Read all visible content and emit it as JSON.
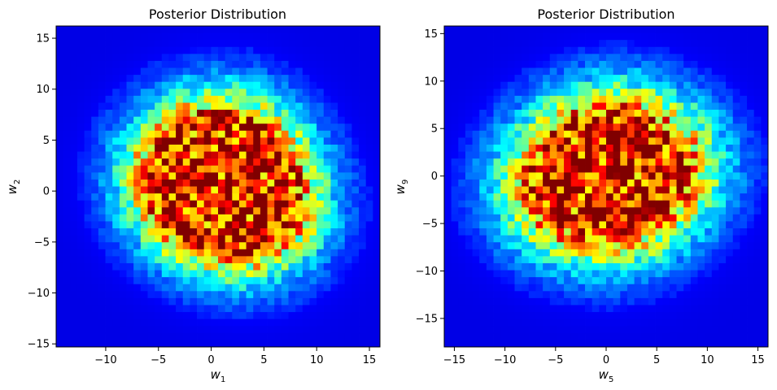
{
  "chart_data": [
    {
      "type": "heatmap",
      "title": "Posterior Distribution",
      "xlabel": "w",
      "xlabel_sub": "1",
      "ylabel": "w",
      "ylabel_sub": "2",
      "xlim": [
        -14.7,
        16.0
      ],
      "ylim": [
        -15.3,
        16.2
      ],
      "xticks": [
        -10,
        -5,
        0,
        5,
        10,
        15
      ],
      "yticks": [
        -15,
        -10,
        -5,
        0,
        5,
        10,
        15
      ],
      "xtick_labels": [
        "−10",
        "−5",
        "0",
        "5",
        "10",
        "15"
      ],
      "ytick_labels": [
        "−15",
        "−10",
        "−5",
        "0",
        "5",
        "10",
        "15"
      ],
      "colormap": "jet",
      "grid": false,
      "bins": 46,
      "density": {
        "spread": 4.6,
        "peaks": [
          {
            "x": -1.5,
            "y": 1.5,
            "weight": 1.0
          },
          {
            "x": 1.0,
            "y": -0.2,
            "weight": 1.0
          },
          {
            "x": 4.5,
            "y": -1.8,
            "weight": 0.8
          },
          {
            "x": 2.0,
            "y": 4.0,
            "weight": 0.5
          }
        ]
      }
    },
    {
      "type": "heatmap",
      "title": "Posterior Distribution",
      "xlabel": "w",
      "xlabel_sub": "5",
      "ylabel": "w",
      "ylabel_sub": "9",
      "xlim": [
        -16.0,
        16.0
      ],
      "ylim": [
        -18.0,
        15.8
      ],
      "xticks": [
        -15,
        -10,
        -5,
        0,
        5,
        10,
        15
      ],
      "yticks": [
        -15,
        -10,
        -5,
        0,
        5,
        10,
        15
      ],
      "xtick_labels": [
        "−15",
        "−10",
        "−5",
        "0",
        "5",
        "10",
        "15"
      ],
      "ytick_labels": [
        "−15",
        "−10",
        "−5",
        "0",
        "5",
        "10",
        "15"
      ],
      "colormap": "jet",
      "grid": false,
      "bins": 46,
      "density": {
        "spread": 4.8,
        "peaks": [
          {
            "x": 0.0,
            "y": 2.5,
            "weight": 1.0
          },
          {
            "x": -4.5,
            "y": -1.5,
            "weight": 0.85
          },
          {
            "x": 5.5,
            "y": 1.2,
            "weight": 0.7
          },
          {
            "x": 1.5,
            "y": -3.5,
            "weight": 0.55
          }
        ]
      }
    }
  ]
}
